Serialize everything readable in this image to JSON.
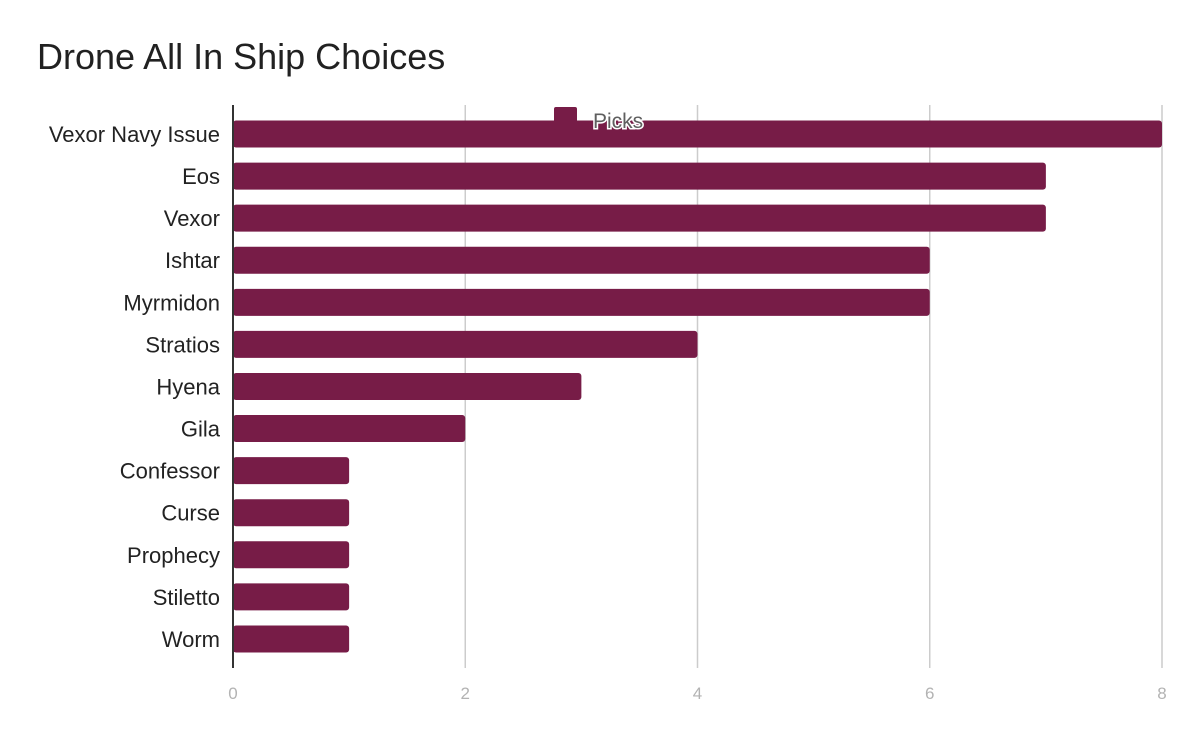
{
  "chart_data": {
    "type": "bar",
    "orientation": "horizontal",
    "title": "Drone All In Ship Choices",
    "xlabel": "",
    "ylabel": "",
    "categories": [
      "Vexor Navy Issue",
      "Eos",
      "Vexor",
      "Ishtar",
      "Myrmidon",
      "Stratios",
      "Hyena",
      "Gila",
      "Confessor",
      "Curse",
      "Prophecy",
      "Stiletto",
      "Worm"
    ],
    "series": [
      {
        "name": "Picks",
        "color": "#771C47",
        "values": [
          8,
          7,
          7,
          6,
          6,
          4,
          3,
          2,
          1,
          1,
          1,
          1,
          1
        ]
      }
    ],
    "xlim": [
      0,
      8
    ],
    "xticks": [
      "0",
      "2",
      "4",
      "6",
      "8"
    ],
    "grid": true,
    "legend_position": "top"
  }
}
